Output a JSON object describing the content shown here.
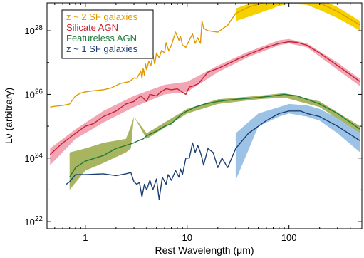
{
  "chart_data": {
    "type": "line",
    "title": "",
    "xlabel": "Rest Wavelength (μm)",
    "ylabel": "Lν (arbitrary)",
    "xscale": "log",
    "yscale": "log",
    "xlim": [
      0.42,
      520
    ],
    "ylim": [
      6e+21,
      7.5e+28
    ],
    "x_ticks": [
      {
        "value": 1,
        "label": "1"
      },
      {
        "value": 10,
        "label": "10"
      },
      {
        "value": 100,
        "label": "100"
      }
    ],
    "y_ticks": [
      {
        "value": 1e+22,
        "base": "10",
        "exp": "22"
      },
      {
        "value": 1e+24,
        "base": "10",
        "exp": "24"
      },
      {
        "value": 1e+26,
        "base": "10",
        "exp": "26"
      },
      {
        "value": 1e+28,
        "base": "10",
        "exp": "28"
      }
    ],
    "grid": false,
    "legend": "top-left",
    "series": [
      {
        "name": "z ~ 2 SF galaxies",
        "color": "#e09a00",
        "band_color": "#f5d100",
        "points": [
          [
            0.45,
            4e+25
          ],
          [
            0.5,
            4.2e+25
          ],
          [
            0.6,
            4.5e+25
          ],
          [
            0.7,
            5e+25
          ],
          [
            0.8,
            9e+25
          ],
          [
            0.9,
            1.1e+26
          ],
          [
            1.0,
            1.2e+26
          ],
          [
            1.2,
            1.3e+26
          ],
          [
            1.5,
            1.4e+26
          ],
          [
            1.8,
            1.6e+26
          ],
          [
            2.2,
            2.2e+26
          ],
          [
            2.7,
            2.5e+26
          ],
          [
            3.0,
            3.3e+26
          ],
          [
            3.2,
            3.2e+26
          ],
          [
            3.4,
            4.5e+26
          ],
          [
            3.5,
            5.5e+26
          ],
          [
            3.6,
            3.2e+26
          ],
          [
            3.7,
            6.5e+26
          ],
          [
            3.8,
            4e+26
          ],
          [
            3.9,
            9e+26
          ],
          [
            4.0,
            6e+26
          ],
          [
            4.2,
            1.1e+27
          ],
          [
            4.4,
            8e+26
          ],
          [
            4.6,
            1.7e+27
          ],
          [
            4.8,
            9e+26
          ],
          [
            5.0,
            2e+27
          ],
          [
            5.3,
            1.4e+27
          ],
          [
            5.6,
            2.4e+27
          ],
          [
            6.0,
            2e+27
          ],
          [
            6.2,
            4.2e+27
          ],
          [
            6.6,
            2.3e+27
          ],
          [
            7.0,
            3.5e+27
          ],
          [
            7.7,
            9e+27
          ],
          [
            8.3,
            5e+27
          ],
          [
            8.6,
            6.5e+27
          ],
          [
            9.0,
            3.5e+27
          ],
          [
            9.7,
            3e+27
          ],
          [
            10.5,
            5e+27
          ],
          [
            11.3,
            8e+27
          ],
          [
            12.0,
            4e+27
          ],
          [
            12.7,
            6e+27
          ],
          [
            13.5,
            4e+27
          ],
          [
            14.0,
            2e+28
          ],
          [
            14.5,
            1.2e+28
          ],
          [
            16,
            1e+28
          ],
          [
            20,
            9e+27
          ],
          [
            25,
            1.5e+28
          ],
          [
            30,
            3.5e+28
          ],
          [
            40,
            5.5e+28
          ],
          [
            60,
            8e+28
          ],
          [
            80,
            1.05e+29
          ],
          [
            100,
            1.2e+29
          ],
          [
            120,
            1.2e+29
          ],
          [
            150,
            1.05e+29
          ],
          [
            200,
            7.5e+28
          ],
          [
            300,
            4e+28
          ],
          [
            500,
            1.5e+28
          ]
        ],
        "band": [
          [
            30,
            2e+28,
            5e+28
          ],
          [
            50,
            3.5e+28,
            9e+28
          ],
          [
            80,
            6e+28,
            1.2e+29
          ],
          [
            100,
            7e+28,
            1.35e+29
          ],
          [
            150,
            6.5e+28,
            1.3e+29
          ],
          [
            200,
            4.5e+28,
            1e+29
          ],
          [
            300,
            2.5e+28,
            5.5e+28
          ],
          [
            500,
            1e+28,
            2e+28
          ]
        ]
      },
      {
        "name": "Silicate AGN",
        "color": "#c8222e",
        "band_color": "#f2a5b5",
        "points": [
          [
            0.45,
            1.3e+24
          ],
          [
            0.6,
            3e+24
          ],
          [
            0.8,
            6e+24
          ],
          [
            1.0,
            1e+25
          ],
          [
            1.2,
            1.2e+25
          ],
          [
            1.5,
            2e+25
          ],
          [
            2.0,
            3e+25
          ],
          [
            2.5,
            5e+25
          ],
          [
            3.0,
            6e+25
          ],
          [
            3.5,
            9e+25
          ],
          [
            4.0,
            6e+25
          ],
          [
            4.3,
            1e+26
          ],
          [
            5.0,
            9e+25
          ],
          [
            5.5,
            1.2e+26
          ],
          [
            6.2,
            1.5e+26
          ],
          [
            7.0,
            1.4e+26
          ],
          [
            8.0,
            1.5e+26
          ],
          [
            9.7,
            1e+26
          ],
          [
            10.5,
            1.7e+26
          ],
          [
            11.3,
            1.8e+26
          ],
          [
            13,
            2.2e+26
          ],
          [
            14,
            3e+26
          ],
          [
            16,
            5e+26
          ],
          [
            20,
            6.5e+26
          ],
          [
            25,
            9e+26
          ],
          [
            30,
            1.2e+27
          ],
          [
            40,
            1.8e+27
          ],
          [
            60,
            3e+27
          ],
          [
            80,
            4e+27
          ],
          [
            100,
            4.5e+27
          ],
          [
            120,
            4.3e+27
          ],
          [
            150,
            3.5e+27
          ],
          [
            200,
            2e+27
          ],
          [
            300,
            8e+26
          ],
          [
            500,
            2.5e+26
          ]
        ],
        "band": [
          [
            0.45,
            6e+23,
            2e+24
          ],
          [
            0.8,
            4e+24,
            8e+24
          ],
          [
            1.5,
            1.3e+25,
            3e+25
          ],
          [
            3.0,
            4e+25,
            9e+25
          ],
          [
            6.0,
            1e+26,
            2e+26
          ],
          [
            10,
            1.2e+26,
            2.5e+26
          ],
          [
            20,
            5e+26,
            8e+26
          ],
          [
            40,
            1.5e+27,
            2.2e+27
          ],
          [
            80,
            3.5e+27,
            5e+27
          ],
          [
            100,
            4e+27,
            5.5e+27
          ],
          [
            150,
            3e+27,
            4e+27
          ],
          [
            300,
            6e+26,
            1e+27
          ],
          [
            500,
            1.8e+26,
            3e+26
          ]
        ]
      },
      {
        "name": "Featureless AGN",
        "color": "#1f7a3a",
        "band_color": "#a8b560",
        "points": [
          [
            0.7,
            2.5e+23
          ],
          [
            0.8,
            5e+23
          ],
          [
            1.0,
            8e+23
          ],
          [
            1.5,
            1.2e+24
          ],
          [
            2.0,
            2e+24
          ],
          [
            2.5,
            2.5e+24
          ],
          [
            3.0,
            3e+24
          ],
          [
            3.3,
            3.5e+24
          ],
          [
            3.7,
            4e+24
          ],
          [
            4.0,
            5e+24
          ],
          [
            5.0,
            7e+24
          ],
          [
            6.0,
            1e+25
          ],
          [
            7.0,
            1.2e+25
          ],
          [
            8.0,
            1.8e+25
          ],
          [
            9.0,
            2.5e+25
          ],
          [
            10,
            3e+25
          ],
          [
            12,
            4e+25
          ],
          [
            15,
            5e+25
          ],
          [
            20,
            6e+25
          ],
          [
            30,
            7e+25
          ],
          [
            50,
            8e+25
          ],
          [
            70,
            9e+25
          ],
          [
            90,
            1e+26
          ],
          [
            120,
            9e+25
          ],
          [
            150,
            7e+25
          ],
          [
            200,
            5e+25
          ],
          [
            300,
            2.5e+25
          ],
          [
            500,
            8e+24
          ]
        ],
        "band": [
          [
            0.7,
            1e+23,
            1.5e+24
          ],
          [
            1.0,
            4e+23,
            2e+24
          ],
          [
            1.5,
            7e+23,
            3e+24
          ],
          [
            2.5,
            1.5e+24,
            4e+24
          ],
          [
            2.8,
            2e+24,
            1e+25
          ],
          [
            3.0,
            2e+25,
            2e+25
          ],
          [
            4.0,
            4e+24,
            6e+24
          ],
          [
            10,
            2.5e+25,
            3.5e+25
          ],
          [
            20,
            5e+25,
            7e+25
          ],
          [
            50,
            7e+25,
            9e+25
          ],
          [
            90,
            8e+25,
            1.1e+26
          ],
          [
            200,
            4e+25,
            6e+25
          ],
          [
            500,
            6e+24,
            1e+25
          ]
        ]
      },
      {
        "name": "z ~ 1 SF galaxies",
        "color": "#1b3f73",
        "band_color": "#9cc3e6",
        "points": [
          [
            0.65,
            1.5e+23
          ],
          [
            0.7,
            1.8e+23
          ],
          [
            0.8,
            3e+23
          ],
          [
            1.0,
            3e+23
          ],
          [
            1.5,
            3.2e+23
          ],
          [
            2.0,
            2.8e+23
          ],
          [
            2.5,
            3.2e+23
          ],
          [
            2.8,
            3.5e+23
          ],
          [
            3.0,
            1.8e+23
          ],
          [
            3.2,
            1.5e+23
          ],
          [
            3.4,
            1.7e+23
          ],
          [
            3.6,
            6e+22
          ],
          [
            3.8,
            1.5e+23
          ],
          [
            4.0,
            1e+23
          ],
          [
            4.3,
            2e+23
          ],
          [
            4.6,
            1e+23
          ],
          [
            5.0,
            2.2e+23
          ],
          [
            5.3,
            5e+22
          ],
          [
            5.7,
            2.5e+23
          ],
          [
            6.2,
            1.5e+23
          ],
          [
            6.5,
            3e+23
          ],
          [
            7.0,
            2e+23
          ],
          [
            7.7,
            4e+23
          ],
          [
            8.3,
            2.5e+23
          ],
          [
            8.6,
            4.5e+23
          ],
          [
            9.0,
            3e+23
          ],
          [
            9.7,
            1e+24
          ],
          [
            10.5,
            1e+24
          ],
          [
            11.3,
            3e+24
          ],
          [
            12,
            1.5e+24
          ],
          [
            12.7,
            2.5e+24
          ],
          [
            13.5,
            1.5e+24
          ],
          [
            14,
            1e+24
          ],
          [
            14.5,
            6e+23
          ],
          [
            16,
            2e+24
          ],
          [
            18,
            1.5e+24
          ],
          [
            20,
            5e+23
          ],
          [
            22,
            1e+24
          ],
          [
            25,
            5e+23
          ],
          [
            30,
            2e+24
          ],
          [
            40,
            6e+24
          ],
          [
            60,
            1.5e+25
          ],
          [
            80,
            2.5e+25
          ],
          [
            100,
            3e+25
          ],
          [
            130,
            3e+25
          ],
          [
            150,
            2.5e+25
          ],
          [
            200,
            2e+25
          ],
          [
            300,
            1e+25
          ],
          [
            500,
            3.5e+24
          ]
        ],
        "band": [
          [
            30,
            2e+23,
            6e+24
          ],
          [
            50,
            1e+25,
            2.5e+25
          ],
          [
            80,
            2e+25,
            4e+25
          ],
          [
            100,
            2.5e+25,
            5e+25
          ],
          [
            150,
            2e+25,
            4.5e+25
          ],
          [
            200,
            1.5e+25,
            3.5e+25
          ],
          [
            300,
            6e+24,
            1.8e+25
          ],
          [
            500,
            1.5e+24,
            6e+24
          ]
        ]
      }
    ]
  }
}
